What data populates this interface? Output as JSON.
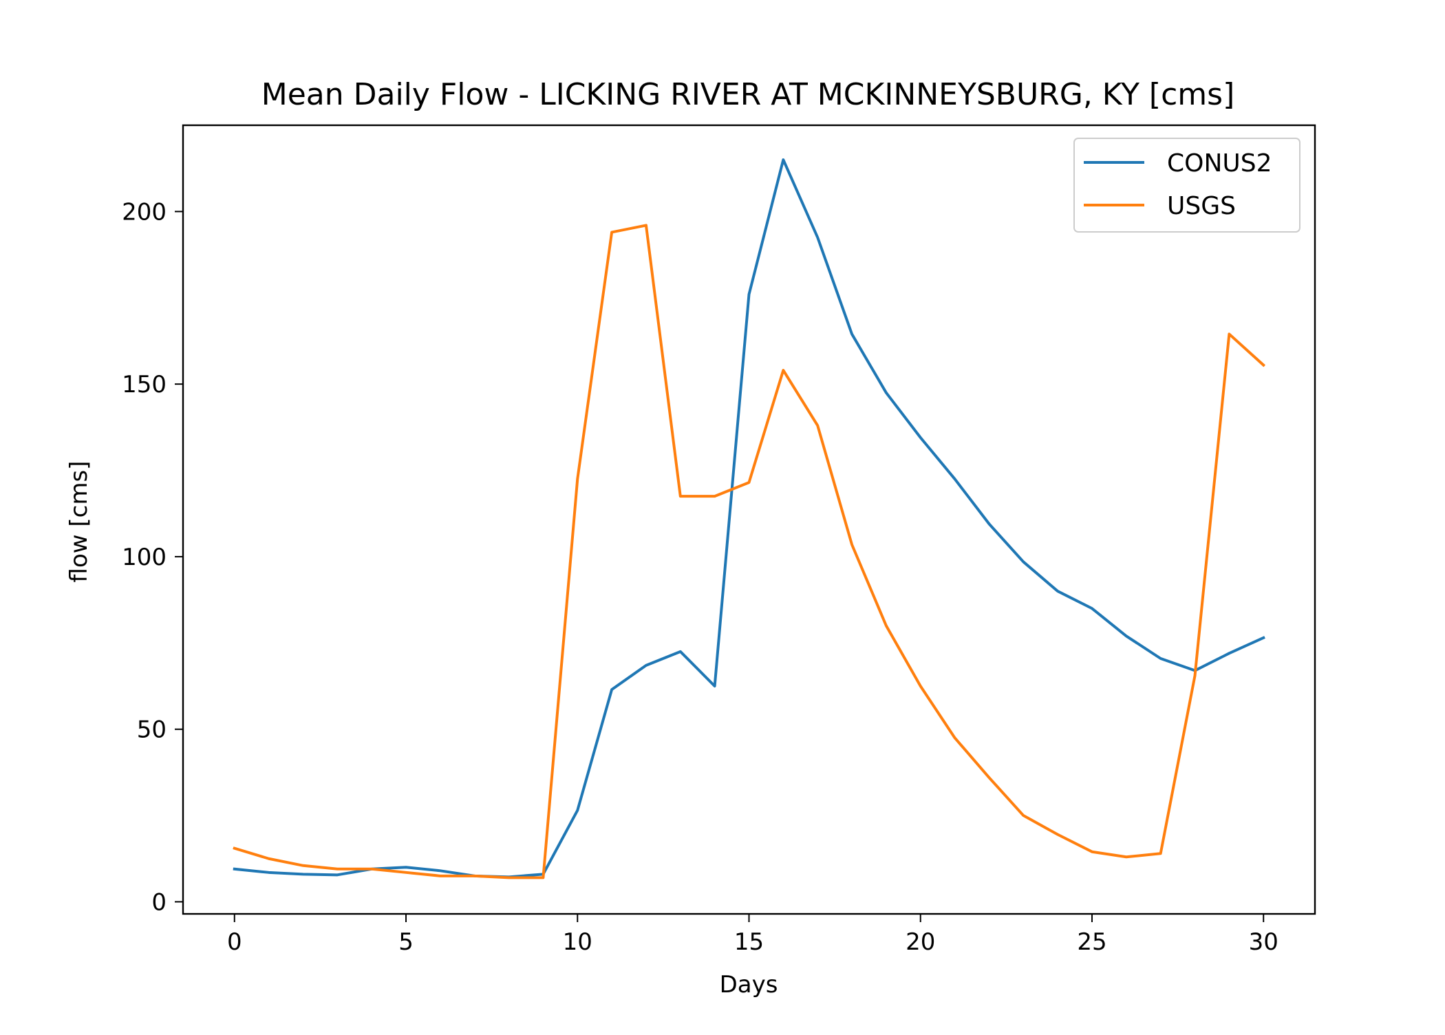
{
  "chart_data": {
    "type": "line",
    "title": "Mean Daily Flow - LICKING RIVER AT MCKINNEYSBURG, KY [cms]",
    "xlabel": "Days",
    "ylabel": "flow [cms]",
    "xlim": [
      -1.5,
      31.5
    ],
    "ylim": [
      -3.5,
      225
    ],
    "xticks": [
      0,
      5,
      10,
      15,
      20,
      25,
      30
    ],
    "xtick_labels": [
      "0",
      "5",
      "10",
      "15",
      "20",
      "25",
      "30"
    ],
    "yticks": [
      0,
      50,
      100,
      150,
      200
    ],
    "ytick_labels": [
      "0",
      "50",
      "100",
      "150",
      "200"
    ],
    "grid": false,
    "legend_position": "upper-right",
    "x": [
      0,
      1,
      2,
      3,
      4,
      5,
      6,
      7,
      8,
      9,
      10,
      11,
      12,
      13,
      14,
      15,
      16,
      17,
      18,
      19,
      20,
      21,
      22,
      23,
      24,
      25,
      26,
      27,
      28,
      29,
      30
    ],
    "series": [
      {
        "name": "CONUS2",
        "color": "#1f77b4",
        "values": [
          9.5,
          8.5,
          8,
          7.8,
          9.5,
          10,
          9,
          7.5,
          7.2,
          8,
          26.5,
          61.5,
          68.5,
          72.5,
          62.5,
          176,
          215,
          192.5,
          164.5,
          147.5,
          134.5,
          122.5,
          109.5,
          98.5,
          90,
          85,
          77,
          70.5,
          67,
          72,
          76.5
        ]
      },
      {
        "name": "USGS",
        "color": "#ff7f0e",
        "values": [
          15.5,
          12.5,
          10.5,
          9.5,
          9.5,
          8.5,
          7.5,
          7.5,
          7,
          7,
          122.5,
          194,
          196,
          117.5,
          117.5,
          121.5,
          154,
          138,
          103.5,
          80,
          62.5,
          47.5,
          36,
          25,
          19.5,
          14.5,
          13,
          14,
          65.5,
          164.5,
          155.5
        ]
      }
    ]
  }
}
